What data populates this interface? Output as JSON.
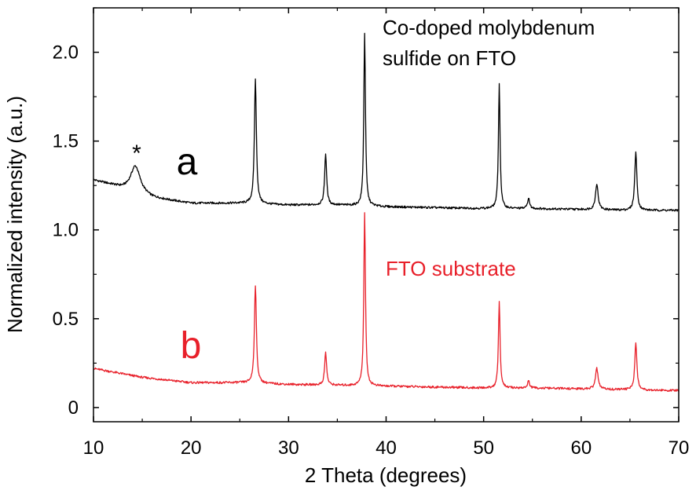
{
  "chart_data": {
    "type": "line",
    "xlabel": "2 Theta (degrees)",
    "ylabel": "Normalized intensity (a.u.)",
    "xlim": [
      10,
      70
    ],
    "ylim": [
      -0.08,
      2.25
    ],
    "xticks": [
      10,
      20,
      30,
      40,
      50,
      60,
      70
    ],
    "yticks": [
      0,
      0.5,
      1.0,
      1.5,
      2.0
    ],
    "ytick_labels": [
      "0",
      "0.5",
      "1.0",
      "1.5",
      "2.0"
    ],
    "grid": false,
    "series": [
      {
        "name": "Co-doped molybdenum sulfide on FTO",
        "label": "a",
        "color": "#000000",
        "baseline": [
          [
            10,
            1.28
          ],
          [
            12,
            1.25
          ],
          [
            13,
            1.23
          ],
          [
            16,
            1.18
          ],
          [
            20,
            1.15
          ],
          [
            25,
            1.15
          ],
          [
            30,
            1.14
          ],
          [
            35,
            1.14
          ],
          [
            40,
            1.13
          ],
          [
            45,
            1.125
          ],
          [
            50,
            1.12
          ],
          [
            55,
            1.12
          ],
          [
            60,
            1.115
          ],
          [
            65,
            1.11
          ],
          [
            70,
            1.11
          ]
        ],
        "peaks": [
          {
            "x": 14.3,
            "y": 1.36,
            "width": 0.6
          },
          {
            "x": 26.6,
            "y": 1.85,
            "width": 0.12
          },
          {
            "x": 33.8,
            "y": 1.43,
            "width": 0.12
          },
          {
            "x": 37.8,
            "y": 2.11,
            "width": 0.1
          },
          {
            "x": 51.6,
            "y": 1.82,
            "width": 0.1
          },
          {
            "x": 54.6,
            "y": 1.18,
            "width": 0.12
          },
          {
            "x": 61.6,
            "y": 1.26,
            "width": 0.16
          },
          {
            "x": 65.6,
            "y": 1.44,
            "width": 0.13
          }
        ]
      },
      {
        "name": "FTO substrate",
        "label": "b",
        "color": "#e8202a",
        "baseline": [
          [
            10,
            0.22
          ],
          [
            12,
            0.2
          ],
          [
            15,
            0.17
          ],
          [
            20,
            0.14
          ],
          [
            25,
            0.14
          ],
          [
            30,
            0.13
          ],
          [
            35,
            0.125
          ],
          [
            40,
            0.12
          ],
          [
            45,
            0.115
          ],
          [
            50,
            0.11
          ],
          [
            55,
            0.11
          ],
          [
            60,
            0.105
          ],
          [
            65,
            0.1
          ],
          [
            70,
            0.095
          ]
        ],
        "peaks": [
          {
            "x": 26.6,
            "y": 0.69,
            "width": 0.12
          },
          {
            "x": 33.8,
            "y": 0.31,
            "width": 0.12
          },
          {
            "x": 37.8,
            "y": 1.1,
            "width": 0.1
          },
          {
            "x": 51.6,
            "y": 0.6,
            "width": 0.1
          },
          {
            "x": 54.6,
            "y": 0.15,
            "width": 0.12
          },
          {
            "x": 61.6,
            "y": 0.22,
            "width": 0.16
          },
          {
            "x": 65.6,
            "y": 0.36,
            "width": 0.13
          }
        ]
      }
    ],
    "annotations": {
      "star": "*",
      "label_a": "a",
      "label_b": "b",
      "top_text_line1": "Co-doped molybdenum",
      "top_text_line2": "sulfide on FTO",
      "fto_text": "FTO substrate"
    }
  }
}
